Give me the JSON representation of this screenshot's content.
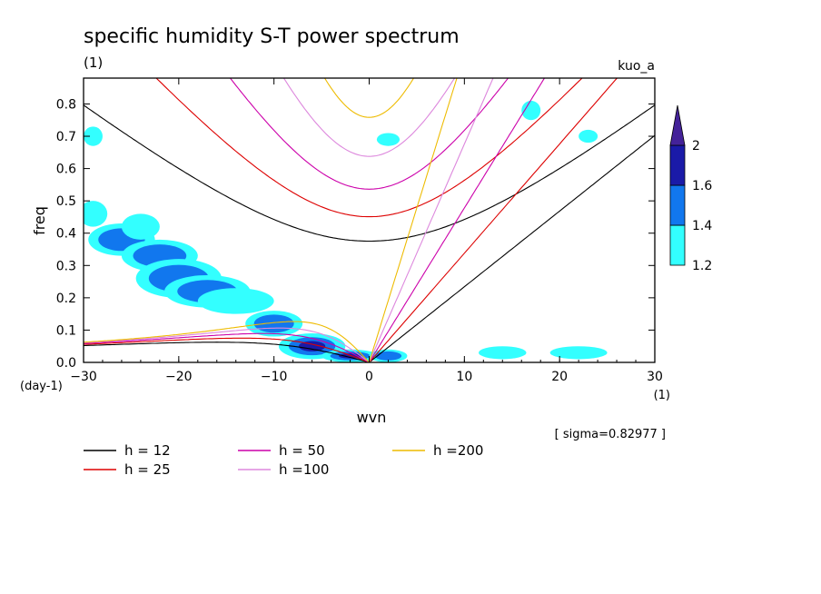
{
  "chart_data": {
    "type": "contour",
    "title": "specific humidity S-T power spectrum",
    "subtitle_left": "(1)",
    "subtitle_right": "kuo_a",
    "xlabel": "wvn",
    "ylabel": "freq",
    "x_unit": "(1)",
    "y_unit": "(day-1)",
    "xlim": [
      -30,
      30
    ],
    "ylim": [
      0,
      0.88
    ],
    "xticks": [
      -30,
      -20,
      -10,
      0,
      10,
      20,
      30
    ],
    "yticks": [
      0.0,
      0.1,
      0.2,
      0.3,
      0.4,
      0.5,
      0.6,
      0.7,
      0.8
    ],
    "colorbar": {
      "levels": [
        "1.2",
        "1.4",
        "1.6",
        "2"
      ],
      "colors": [
        "#33ffff",
        "#1177ee",
        "#1a1aa8",
        "#442299"
      ]
    },
    "sigma_note": "[ sigma=0.82977 ]",
    "dispersion_curves": [
      {
        "h": 12,
        "label": "h = 12",
        "color": "#000000"
      },
      {
        "h": 25,
        "label": "h = 25",
        "color": "#dd0000"
      },
      {
        "h": 50,
        "label": "h = 50",
        "color": "#cc00aa"
      },
      {
        "h": 100,
        "label": "h =100",
        "color": "#dd88dd"
      },
      {
        "h": 200,
        "label": "h =200",
        "color": "#eebb00"
      }
    ],
    "shaded_regions": [
      {
        "x": -29,
        "y": 0.46,
        "rx": 1.5,
        "ry": 0.04,
        "level": 1
      },
      {
        "x": -26,
        "y": 0.38,
        "rx": 3.5,
        "ry": 0.05,
        "level": 2
      },
      {
        "x": -24,
        "y": 0.42,
        "rx": 2.0,
        "ry": 0.04,
        "level": 1
      },
      {
        "x": -22,
        "y": 0.33,
        "rx": 4.0,
        "ry": 0.05,
        "level": 2
      },
      {
        "x": -20,
        "y": 0.26,
        "rx": 4.5,
        "ry": 0.06,
        "level": 2
      },
      {
        "x": -17,
        "y": 0.22,
        "rx": 4.5,
        "ry": 0.05,
        "level": 2
      },
      {
        "x": -14,
        "y": 0.19,
        "rx": 4.0,
        "ry": 0.04,
        "level": 1
      },
      {
        "x": -10,
        "y": 0.12,
        "rx": 3.0,
        "ry": 0.04,
        "level": 2
      },
      {
        "x": -6,
        "y": 0.05,
        "rx": 3.5,
        "ry": 0.04,
        "level": 3
      },
      {
        "x": -2,
        "y": 0.02,
        "rx": 3.0,
        "ry": 0.02,
        "level": 3
      },
      {
        "x": 2,
        "y": 0.02,
        "rx": 2.0,
        "ry": 0.02,
        "level": 2
      },
      {
        "x": 14,
        "y": 0.03,
        "rx": 2.5,
        "ry": 0.02,
        "level": 1
      },
      {
        "x": 22,
        "y": 0.03,
        "rx": 3.0,
        "ry": 0.02,
        "level": 1
      },
      {
        "x": -29,
        "y": 0.7,
        "rx": 1.0,
        "ry": 0.03,
        "level": 1
      },
      {
        "x": 2,
        "y": 0.69,
        "rx": 1.2,
        "ry": 0.02,
        "level": 1
      },
      {
        "x": 17,
        "y": 0.78,
        "rx": 1.0,
        "ry": 0.03,
        "level": 1
      },
      {
        "x": 23,
        "y": 0.7,
        "rx": 1.0,
        "ry": 0.02,
        "level": 1
      }
    ]
  }
}
